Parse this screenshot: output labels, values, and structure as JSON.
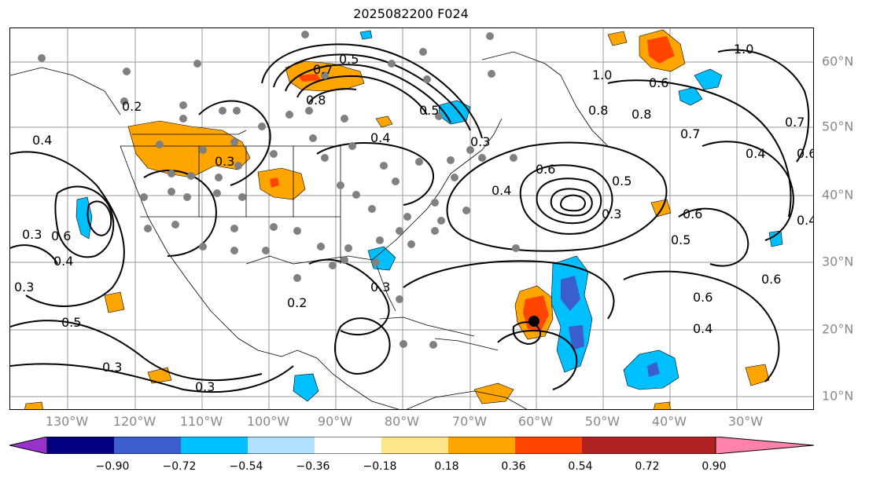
{
  "title": "2025082200 F024",
  "lon_labels": [
    "130°W",
    "120°W",
    "110°W",
    "100°W",
    "90°W",
    "80°W",
    "70°W",
    "60°W",
    "50°W",
    "40°W",
    "30°W"
  ],
  "lat_labels": [
    "60°N",
    "50°N",
    "40°N",
    "30°N",
    "20°N",
    "10°N"
  ],
  "contour_labels": [
    "0.5",
    "0.7",
    "0.8",
    "0.5",
    "0.4",
    "0.2",
    "0.4",
    "0.3",
    "0.3",
    "0.6",
    "0.3",
    "0.5",
    "0.4",
    "0.3",
    "0.3",
    "0.2",
    "0.3",
    "0.6",
    "0.5",
    "0.3",
    "0.8",
    "1.0",
    "0.5",
    "0.4",
    "0.6",
    "0.6",
    "0.8",
    "0.7",
    "1.0",
    "0.6",
    "0.4",
    "0.3",
    "0.4",
    "0.6",
    "0.7",
    "0.4",
    "0.6"
  ],
  "colorbar": {
    "ticks": [
      "−0.90",
      "−0.72",
      "−0.54",
      "−0.36",
      "−0.18",
      "0.18",
      "0.36",
      "0.54",
      "0.72",
      "0.90"
    ],
    "colors": [
      "#9932cc",
      "#000080",
      "#3a5fcd",
      "#00bfff",
      "#b0e2ff",
      "#ffffff",
      "#ffe58a",
      "#ffa500",
      "#ff4500",
      "#b22222",
      "#ff82ab"
    ]
  }
}
